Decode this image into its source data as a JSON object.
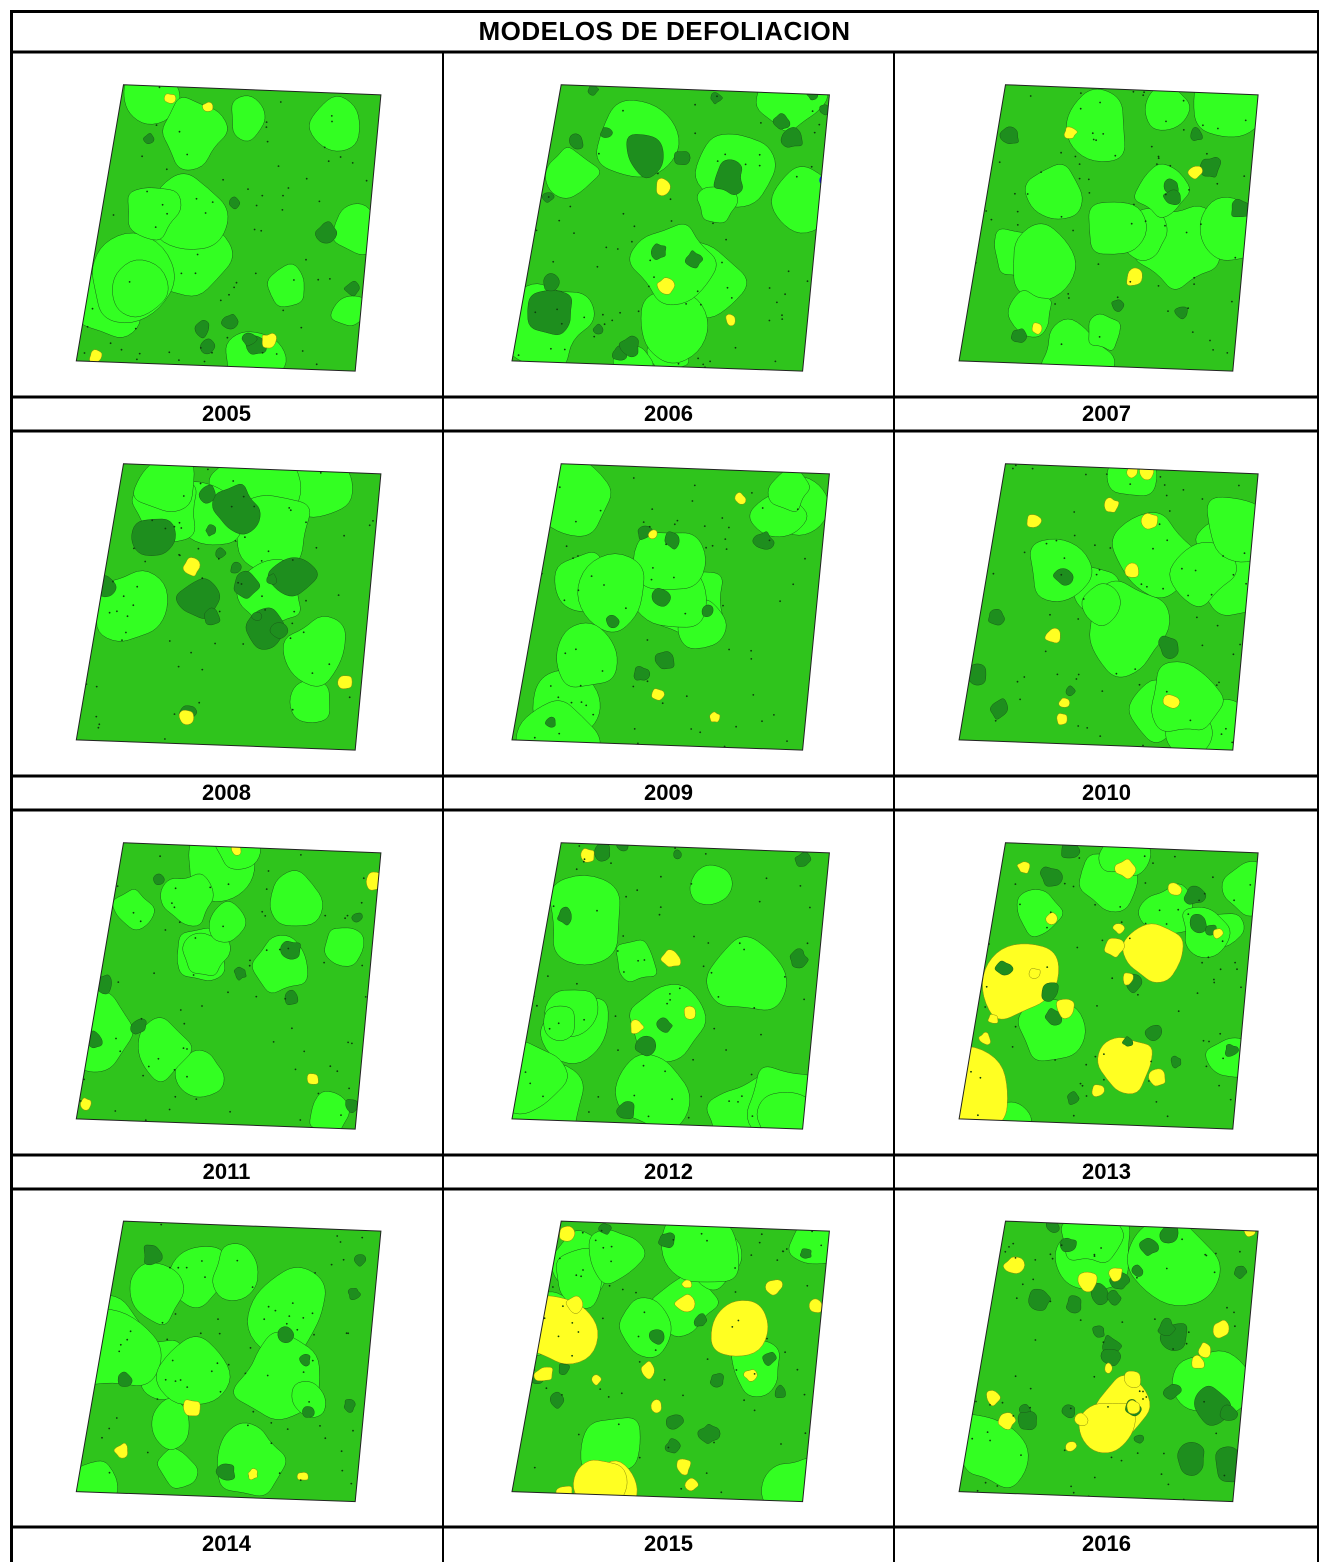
{
  "table": {
    "title": "MODELOS DE DEFOLIACION"
  },
  "palette": {
    "base_green": "#2fc41c",
    "light_green": "#33ff22",
    "dark_green": "#1e8e1e",
    "darker_green": "#156a15",
    "yellow": "#ffff22",
    "blue": "#0b18ff",
    "outline": "#222222"
  },
  "maps": [
    {
      "year": "2005",
      "pattern": "green-mottled"
    },
    {
      "year": "2006",
      "pattern": "green-mottled-dark-patches",
      "has_blue_spot": true
    },
    {
      "year": "2007",
      "pattern": "green-mottled"
    },
    {
      "year": "2008",
      "pattern": "green-dark-patches"
    },
    {
      "year": "2009",
      "pattern": "green-mottled"
    },
    {
      "year": "2010",
      "pattern": "green-yellow-spots"
    },
    {
      "year": "2011",
      "pattern": "green-mottled"
    },
    {
      "year": "2012",
      "pattern": "green-mottled"
    },
    {
      "year": "2013",
      "pattern": "green-yellow-patches"
    },
    {
      "year": "2014",
      "pattern": "green-mottled"
    },
    {
      "year": "2015",
      "pattern": "green-large-yellow-patches"
    },
    {
      "year": "2016",
      "pattern": "dark-green-yellow-spots"
    }
  ]
}
